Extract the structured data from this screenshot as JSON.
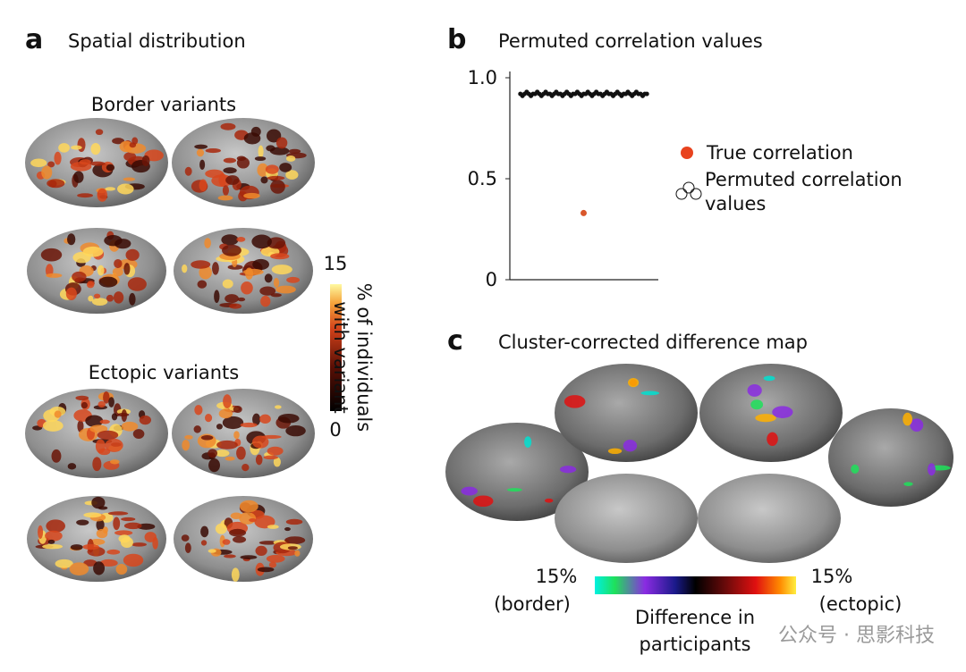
{
  "panel_a": {
    "letter": "a",
    "title": "Spatial distribution",
    "border_label": "Border variants",
    "ectopic_label": "Ectopic variants",
    "colorbar": {
      "max": "15",
      "min": "0",
      "label": "% of individuals with variant"
    }
  },
  "chart_data": {
    "type": "scatter",
    "letter": "b",
    "title": "Permuted correlation values",
    "xlim": [
      -5,
      65
    ],
    "ylim": [
      0,
      1.0
    ],
    "yticks": [
      0,
      0.5,
      {
        "value": 1.0,
        "label": "1.0"
      }
    ],
    "series": [
      {
        "name": "True correlation",
        "color": "#d9572b",
        "legend_color": "#e8431e",
        "x": [
          30
        ],
        "values": [
          0.33
        ]
      },
      {
        "name": "Permuted correlation values",
        "color": "#111111",
        "x": [
          0,
          1,
          2,
          3,
          4,
          5,
          6,
          7,
          8,
          9,
          10,
          11,
          12,
          13,
          14,
          15,
          16,
          17,
          18,
          19,
          20,
          21,
          22,
          23,
          24,
          25,
          26,
          27,
          28,
          29,
          30,
          31,
          32,
          33,
          34,
          35,
          36,
          37,
          38,
          39,
          40,
          41,
          42,
          43,
          44,
          45,
          46,
          47,
          48,
          49,
          50,
          51,
          52,
          53,
          54,
          55,
          56,
          57,
          58,
          59,
          60
        ],
        "values": [
          0.92,
          0.91,
          0.92,
          0.93,
          0.92,
          0.91,
          0.92,
          0.92,
          0.93,
          0.92,
          0.91,
          0.92,
          0.93,
          0.92,
          0.92,
          0.91,
          0.92,
          0.93,
          0.92,
          0.92,
          0.91,
          0.92,
          0.93,
          0.92,
          0.91,
          0.92,
          0.92,
          0.93,
          0.92,
          0.91,
          0.92,
          0.92,
          0.93,
          0.92,
          0.91,
          0.92,
          0.93,
          0.92,
          0.92,
          0.91,
          0.92,
          0.93,
          0.92,
          0.92,
          0.91,
          0.92,
          0.93,
          0.92,
          0.91,
          0.92,
          0.92,
          0.93,
          0.92,
          0.91,
          0.92,
          0.93,
          0.92,
          0.92,
          0.91,
          0.92,
          0.92
        ]
      }
    ]
  },
  "panel_c": {
    "letter": "c",
    "title": "Cluster-corrected difference map",
    "left_pct": "15%",
    "left_label": "(border)",
    "right_pct": "15%",
    "right_label": "(ectopic)",
    "axis_label_1": "Difference in",
    "axis_label_2": "participants"
  },
  "watermark": "公众号 · 思影科技"
}
